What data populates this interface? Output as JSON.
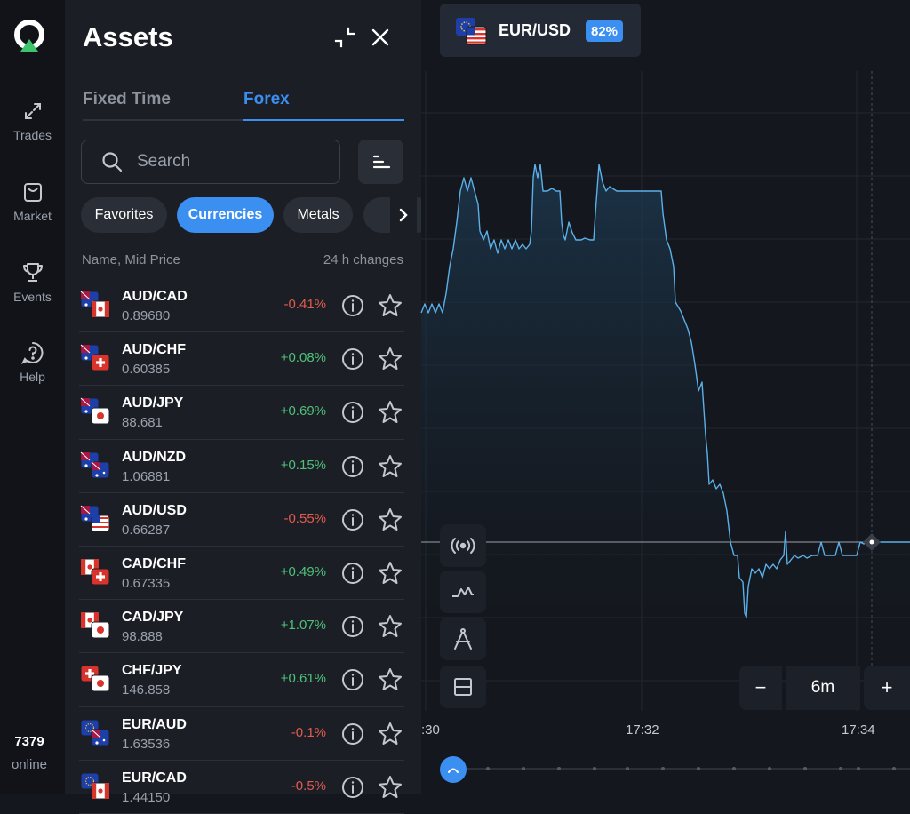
{
  "rail": {
    "items": [
      {
        "label": "Trades",
        "icon": "trades-arrows-icon"
      },
      {
        "label": "Market",
        "icon": "shopping-bag-icon"
      },
      {
        "label": "Events",
        "icon": "trophy-icon"
      },
      {
        "label": "Help",
        "icon": "help-bubble-icon"
      }
    ],
    "online_count": "7379",
    "online_label": "online"
  },
  "panel": {
    "title": "Assets",
    "tabs": [
      {
        "label": "Fixed Time"
      },
      {
        "label": "Forex"
      }
    ],
    "active_tab": "Forex",
    "search": {
      "placeholder": "Search",
      "value": ""
    },
    "chips": [
      {
        "label": "Favorites"
      },
      {
        "label": "Currencies"
      },
      {
        "label": "Metals"
      }
    ],
    "active_chip": "Currencies",
    "list_header": {
      "left": "Name, Mid Price",
      "right": "24 h changes"
    },
    "assets": [
      {
        "pair": "AUD/CAD",
        "price": "0.89680",
        "change": "-0.41%",
        "dir": "neg"
      },
      {
        "pair": "AUD/CHF",
        "price": "0.60385",
        "change": "+0.08%",
        "dir": "pos"
      },
      {
        "pair": "AUD/JPY",
        "price": "88.681",
        "change": "+0.69%",
        "dir": "pos"
      },
      {
        "pair": "AUD/NZD",
        "price": "1.06881",
        "change": "+0.15%",
        "dir": "pos"
      },
      {
        "pair": "AUD/USD",
        "price": "0.66287",
        "change": "-0.55%",
        "dir": "neg"
      },
      {
        "pair": "CAD/CHF",
        "price": "0.67335",
        "change": "+0.49%",
        "dir": "pos"
      },
      {
        "pair": "CAD/JPY",
        "price": "98.888",
        "change": "+1.07%",
        "dir": "pos"
      },
      {
        "pair": "CHF/JPY",
        "price": "146.858",
        "change": "+0.61%",
        "dir": "pos"
      },
      {
        "pair": "EUR/AUD",
        "price": "1.63536",
        "change": "-0.1%",
        "dir": "neg"
      },
      {
        "pair": "EUR/CAD",
        "price": "1.44150",
        "change": "-0.5%",
        "dir": "neg"
      }
    ]
  },
  "chart": {
    "asset": "EUR/USD",
    "payout": "82%",
    "timeframe": "6m",
    "zoom_minus": "−",
    "zoom_plus": "+",
    "time_labels": [
      ":30",
      "17:32",
      "17:34"
    ]
  },
  "colors": {
    "accent": "#3a8ff0",
    "positive": "#4fc07a",
    "negative": "#e25b4f",
    "line": "#5bb0e8"
  }
}
